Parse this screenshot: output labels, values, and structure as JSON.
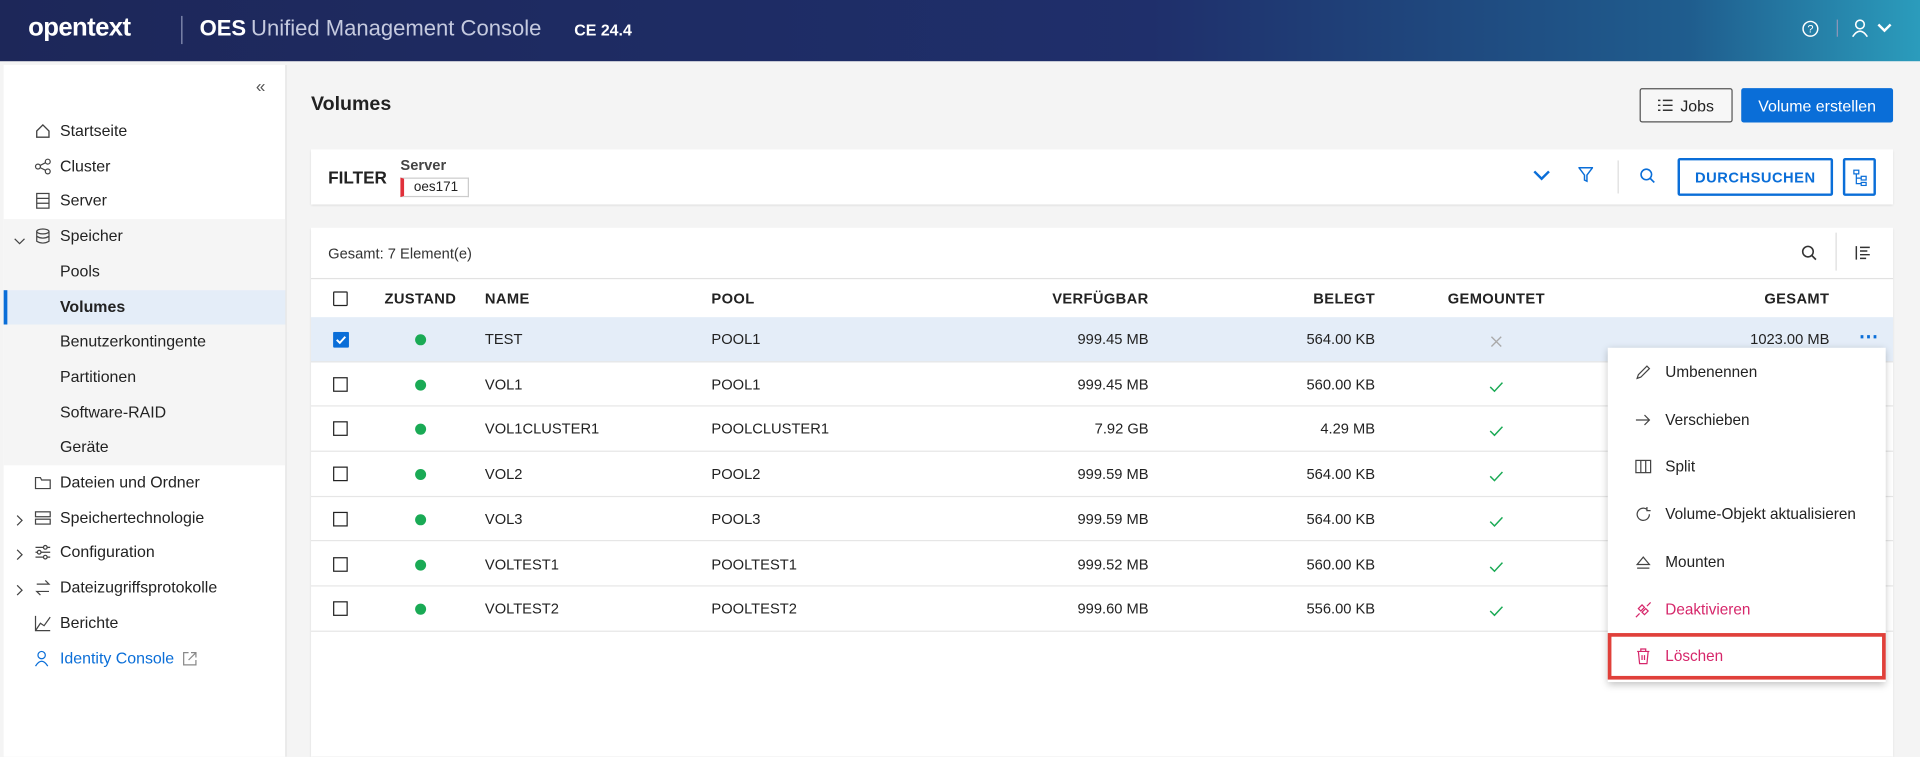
{
  "header": {
    "brand": "opentext",
    "product": "OES",
    "title": "Unified Management Console",
    "version": "CE 24.4"
  },
  "sidebar": {
    "items": [
      {
        "label": "Startseite"
      },
      {
        "label": "Cluster"
      },
      {
        "label": "Server"
      },
      {
        "label": "Speicher",
        "children": [
          "Pools",
          "Volumes",
          "Benutzerkontingente",
          "Partitionen",
          "Software-RAID",
          "Geräte"
        ]
      },
      {
        "label": "Dateien und Ordner"
      },
      {
        "label": "Speichertechnologie"
      },
      {
        "label": "Configuration"
      },
      {
        "label": "Dateizugriffsprotokolle"
      },
      {
        "label": "Berichte"
      },
      {
        "label": "Identity Console"
      }
    ]
  },
  "page": {
    "title": "Volumes",
    "buttons": [
      "Jobs",
      "Volume erstellen"
    ]
  },
  "filter": {
    "label": "FILTER",
    "field": "Server",
    "value": "oes171",
    "search": "DURCHSUCHEN"
  },
  "table": {
    "summary": "Gesamt: 7 Element(e)",
    "columns": [
      "ZUSTAND",
      "NAME",
      "POOL",
      "VERFÜGBAR",
      "BELEGT",
      "GEMOUNTET",
      "GESAMT"
    ],
    "rows": [
      {
        "name": "TEST",
        "pool": "POOL1",
        "available": "999.45 MB",
        "used": "564.00 KB",
        "total": "1023.00 MB",
        "mounted": false,
        "selected": true
      },
      {
        "name": "VOL1",
        "pool": "POOL1",
        "available": "999.45 MB",
        "used": "560.00 KB",
        "mounted": true,
        "selected": false
      },
      {
        "name": "VOL1CLUSTER1",
        "pool": "POOLCLUSTER1",
        "available": "7.92 GB",
        "used": "4.29 MB",
        "mounted": true,
        "selected": false
      },
      {
        "name": "VOL2",
        "pool": "POOL2",
        "available": "999.59 MB",
        "used": "564.00 KB",
        "mounted": true,
        "selected": false
      },
      {
        "name": "VOL3",
        "pool": "POOL3",
        "available": "999.59 MB",
        "used": "564.00 KB",
        "mounted": true,
        "selected": false
      },
      {
        "name": "VOLTEST1",
        "pool": "POOLTEST1",
        "available": "999.52 MB",
        "used": "560.00 KB",
        "mounted": true,
        "selected": false
      },
      {
        "name": "VOLTEST2",
        "pool": "POOLTEST2",
        "available": "999.60 MB",
        "used": "556.00 KB",
        "mounted": true,
        "selected": false
      }
    ]
  },
  "menu": {
    "items": [
      "Umbenennen",
      "Verschieben",
      "Split",
      "Volume-Objekt aktualisieren",
      "Mounten",
      "Deaktivieren",
      "Löschen"
    ]
  }
}
